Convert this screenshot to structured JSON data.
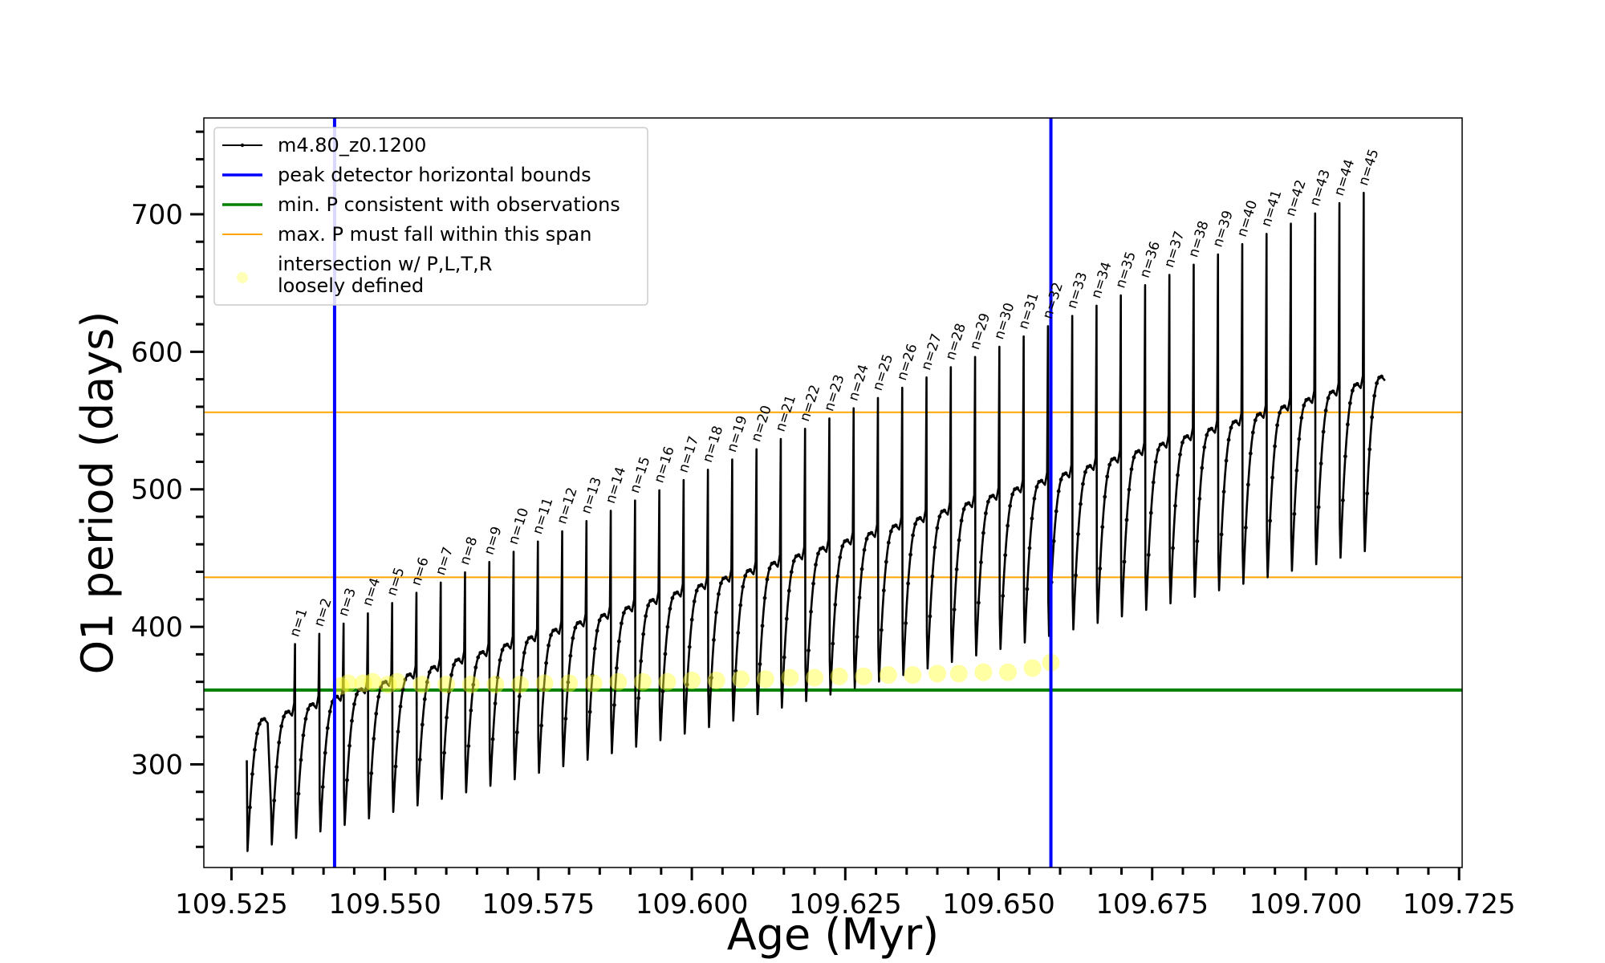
{
  "chart_data": {
    "type": "line",
    "title": "",
    "xlabel": "Age (Myr)",
    "ylabel": "O1 period (days)",
    "xlim": [
      109.5205,
      109.7255
    ],
    "ylim": [
      225,
      770
    ],
    "x_ticks": [
      109.525,
      109.55,
      109.575,
      109.6,
      109.625,
      109.65,
      109.675,
      109.7,
      109.725
    ],
    "x_tick_labels": [
      "109.525",
      "109.550",
      "109.575",
      "109.600",
      "109.625",
      "109.650",
      "109.675",
      "109.700",
      "109.725"
    ],
    "y_ticks": [
      300,
      400,
      500,
      600,
      700
    ],
    "y_tick_labels": [
      "300",
      "400",
      "500",
      "600",
      "700"
    ],
    "grid": false,
    "legend_position": "top-left",
    "series": [
      {
        "name": "m4.80_z0.1200",
        "color": "#000000",
        "description_pulses": {
          "first_pulse_start_age": 109.5275,
          "pulse_spacing_myr": 0.003957,
          "pulse_count": 47,
          "first_peak_period": 333,
          "last_peak_period": 582,
          "first_trough_period": 237,
          "last_trough_period": 455,
          "first_spike_period": 380,
          "last_spike_period": 723
        }
      }
    ],
    "pulse_labels": [
      "n=1",
      "n=2",
      "n=3",
      "n=4",
      "n=5",
      "n=6",
      "n=7",
      "n=8",
      "n=9",
      "n=10",
      "n=11",
      "n=12",
      "n=13",
      "n=14",
      "n=15",
      "n=16",
      "n=17",
      "n=18",
      "n=19",
      "n=20",
      "n=21",
      "n=22",
      "n=23",
      "n=24",
      "n=25",
      "n=26",
      "n=27",
      "n=28",
      "n=29",
      "n=30",
      "n=31",
      "n=32",
      "n=33",
      "n=34",
      "n=35",
      "n=36",
      "n=37",
      "n=38",
      "n=39",
      "n=40",
      "n=41",
      "n=42",
      "n=43",
      "n=44",
      "n=45"
    ],
    "vertical_lines": {
      "name": "peak detector horizontal bounds",
      "color": "#0000ff",
      "x": [
        109.5418,
        109.6585
      ]
    },
    "min_line": {
      "name": "min. P consistent with observations",
      "color": "#008000",
      "y": 354
    },
    "span_lines": {
      "name": "max. P must fall within this span",
      "color": "#ffa500",
      "y": [
        436,
        556
      ]
    },
    "intersections": {
      "name": "intersection w/ P,L,T,R loosely defined",
      "color": "#ffff33",
      "points": [
        [
          109.5428,
          357
        ],
        [
          109.544,
          359
        ],
        [
          109.5465,
          359
        ],
        [
          109.548,
          360
        ],
        [
          109.5505,
          358
        ],
        [
          109.552,
          360
        ],
        [
          109.556,
          358
        ],
        [
          109.56,
          358
        ],
        [
          109.564,
          358
        ],
        [
          109.568,
          358
        ],
        [
          109.572,
          358
        ],
        [
          109.576,
          359
        ],
        [
          109.58,
          359
        ],
        [
          109.584,
          359
        ],
        [
          109.588,
          360
        ],
        [
          109.592,
          360
        ],
        [
          109.596,
          360
        ],
        [
          109.6,
          361
        ],
        [
          109.604,
          361
        ],
        [
          109.608,
          362
        ],
        [
          109.612,
          362
        ],
        [
          109.616,
          363
        ],
        [
          109.62,
          363
        ],
        [
          109.624,
          364
        ],
        [
          109.628,
          364
        ],
        [
          109.632,
          365
        ],
        [
          109.636,
          365
        ],
        [
          109.64,
          366
        ],
        [
          109.6435,
          366
        ],
        [
          109.6475,
          367
        ],
        [
          109.6515,
          367
        ],
        [
          109.6555,
          370
        ],
        [
          109.6585,
          374
        ]
      ]
    },
    "legend": {
      "entries": [
        "m4.80_z0.1200",
        "peak detector horizontal bounds",
        "min. P consistent with observations",
        "max. P must fall within this span",
        "intersection w/ P,L,T,R",
        "loosely defined"
      ]
    }
  }
}
